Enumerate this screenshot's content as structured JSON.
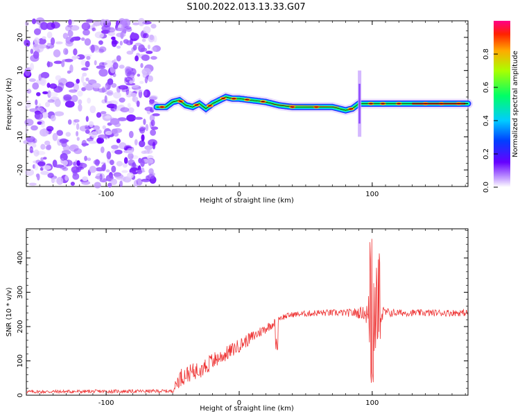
{
  "title": "S100.2022.013.13.33.G07",
  "chart_data": [
    {
      "type": "heatmap",
      "xlabel": "Height of straight line (km)",
      "ylabel": "Frequency (Hz)",
      "xlim": [
        -160,
        172
      ],
      "ylim": [
        -25,
        25
      ],
      "xticks": [
        -100,
        0,
        100
      ],
      "yticks": [
        -20,
        -10,
        0,
        10,
        20
      ],
      "noise_region_x": [
        -160,
        -62
      ],
      "ridge": {
        "x": [
          -62,
          -55,
          -50,
          -45,
          -40,
          -35,
          -30,
          -25,
          -20,
          -15,
          -10,
          -5,
          0,
          10,
          20,
          30,
          40,
          50,
          60,
          70,
          75,
          80,
          85,
          90,
          95,
          100,
          110,
          120,
          140,
          172
        ],
        "freq": [
          -1,
          -1,
          0.5,
          1,
          -0.5,
          -1,
          0,
          -1.5,
          0,
          1,
          2,
          1.5,
          1.5,
          1,
          0.5,
          -0.5,
          -1,
          -1,
          -1,
          -1,
          -1.5,
          -2,
          -1.5,
          0,
          0,
          0,
          0,
          0,
          0,
          0
        ]
      },
      "colorbar": {
        "label": "Normalized spectral amplitude",
        "ticks": [
          "0.0",
          "0.2",
          "0.4",
          "0.6",
          "0.8"
        ],
        "range": [
          0,
          1
        ]
      }
    },
    {
      "type": "line",
      "xlabel": "Height of straight line (km)",
      "ylabel": "SNR (10 * v/v)",
      "xlim": [
        -160,
        172
      ],
      "ylim": [
        0,
        485
      ],
      "xticks": [
        -100,
        0,
        100
      ],
      "yticks": [
        0,
        100,
        200,
        300,
        400
      ],
      "color": "#ee3333",
      "envelope": {
        "x": [
          -160,
          -50,
          -45,
          -40,
          -30,
          -25,
          -20,
          -10,
          0,
          10,
          20,
          28,
          30,
          40,
          60,
          80,
          95,
          100,
          105,
          110,
          120,
          172
        ],
        "mean": [
          10,
          12,
          50,
          60,
          75,
          85,
          100,
          120,
          145,
          170,
          195,
          215,
          225,
          235,
          240,
          240,
          240,
          200,
          230,
          240,
          240,
          240
        ],
        "amp": [
          5,
          5,
          28,
          25,
          25,
          28,
          25,
          22,
          20,
          18,
          15,
          12,
          10,
          8,
          10,
          10,
          20,
          160,
          40,
          15,
          10,
          10
        ]
      }
    }
  ]
}
